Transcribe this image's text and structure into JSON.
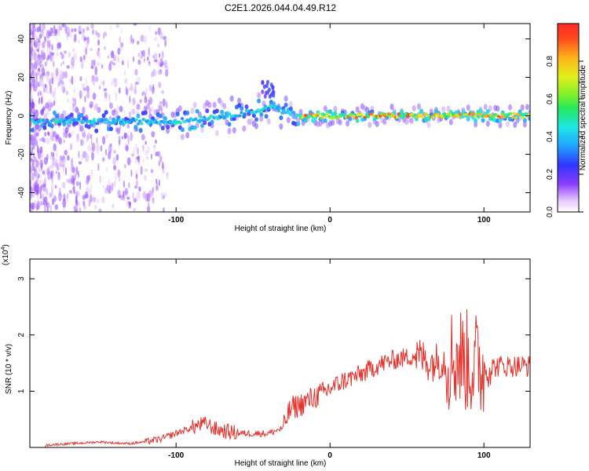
{
  "title": "C2E1.2026.044.04.49.R12",
  "chart_data": [
    {
      "type": "heatmap",
      "xlabel": "Height of straight line (km)",
      "ylabel": "Frequency (Hz)",
      "xlim": [
        -195,
        130
      ],
      "ylim": [
        -50,
        48
      ],
      "x_ticks": [
        -100,
        0,
        100
      ],
      "y_ticks": [
        -40,
        -20,
        0,
        20,
        40
      ],
      "x_tick_labels": [
        "-100",
        "0",
        "100"
      ],
      "y_tick_labels": [
        "-40",
        "-20",
        "0",
        "20",
        "40"
      ],
      "ridge_x": [
        -195,
        -150,
        -120,
        -100,
        -80,
        -60,
        -45,
        -40,
        -30,
        -25,
        -20,
        0,
        50,
        100,
        130
      ],
      "ridge_y": [
        -3,
        -3,
        -3,
        -3,
        -1,
        1,
        3,
        5,
        2,
        1,
        0,
        0,
        0,
        0,
        0
      ],
      "colorbar": {
        "label": "Normalized spectral amplitude",
        "range": [
          0,
          1
        ],
        "ticks": [
          0.0,
          0.2,
          0.4,
          0.6,
          0.8
        ],
        "tick_labels": [
          "0.0",
          "0.2",
          "0.4",
          "0.6",
          "0.8"
        ]
      }
    },
    {
      "type": "line",
      "xlabel": "Height of straight line (km)",
      "ylabel": "SNR (10 * v/v)",
      "scale_label": "(x10",
      "scale_exponent": "4",
      "scale_suffix": ")",
      "xlim": [
        -195,
        130
      ],
      "ylim": [
        0,
        3.35
      ],
      "x_ticks": [
        -100,
        0,
        100
      ],
      "y_ticks": [
        1,
        2,
        3
      ],
      "x_tick_labels": [
        "-100",
        "0",
        "100"
      ],
      "y_tick_labels": [
        "1",
        "2",
        "3"
      ],
      "series": [
        {
          "name": "SNR",
          "color": "#e8302a",
          "x": [
            -195,
            -180,
            -160,
            -150,
            -140,
            -130,
            -120,
            -110,
            -100,
            -90,
            -85,
            -80,
            -75,
            -70,
            -60,
            -50,
            -40,
            -35,
            -30,
            -28,
            -25,
            -20,
            -15,
            -10,
            -5,
            0,
            10,
            20,
            30,
            40,
            50,
            55,
            60,
            65,
            70,
            75,
            80,
            85,
            88,
            90,
            92,
            95,
            100,
            110,
            120,
            130
          ],
          "values": [
            0.0,
            0.05,
            0.08,
            0.1,
            0.08,
            0.07,
            0.1,
            0.15,
            0.25,
            0.35,
            0.4,
            0.42,
            0.33,
            0.3,
            0.25,
            0.25,
            0.25,
            0.3,
            0.35,
            0.55,
            0.7,
            0.75,
            0.82,
            0.9,
            0.95,
            1.05,
            1.2,
            1.3,
            1.45,
            1.55,
            1.6,
            1.65,
            1.6,
            1.5,
            1.55,
            1.55,
            1.6,
            1.6,
            1.55,
            1.5,
            1.45,
            1.5,
            1.4,
            1.45,
            1.45,
            1.45
          ]
        }
      ]
    }
  ]
}
